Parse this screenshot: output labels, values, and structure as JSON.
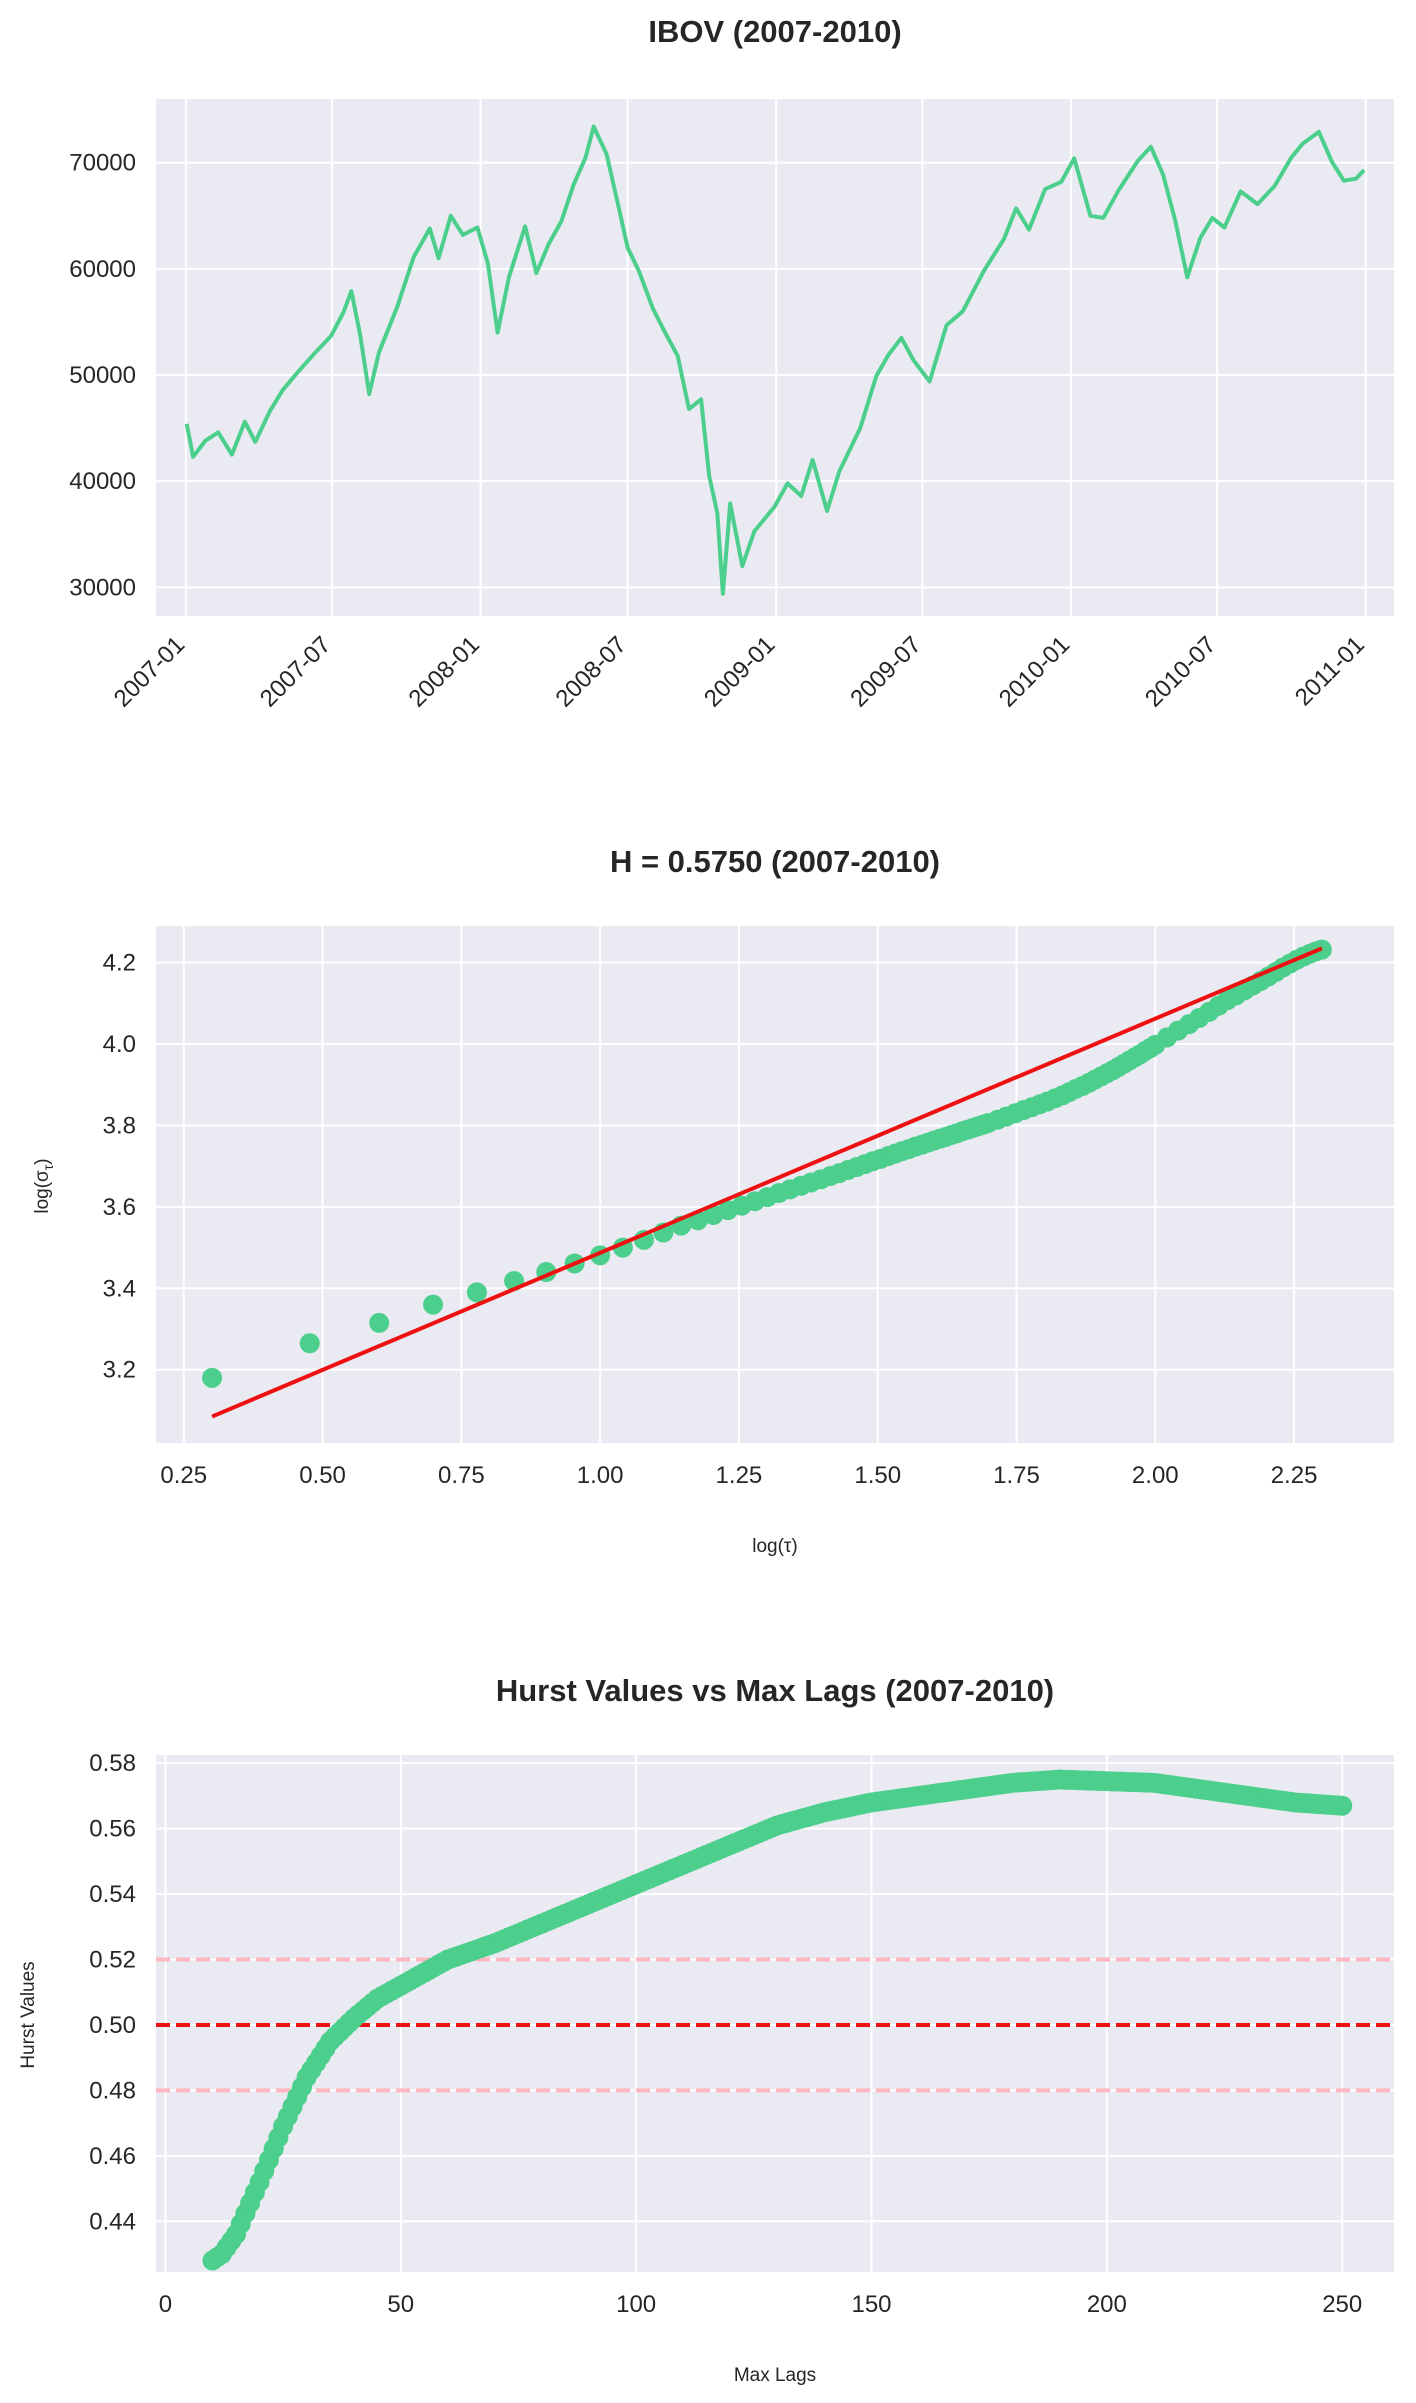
{
  "figure": {
    "colors": {
      "axes_bg": "#eaeaf2",
      "grid": "#ffffff",
      "series": "#4ccf8c",
      "fit": "#ee1111",
      "ref": "#ee1111",
      "band": "#ffb6c1",
      "text": "#262626"
    }
  },
  "chart_data": [
    {
      "type": "line",
      "title": "IBOV (2007-2010)",
      "xlabel": "",
      "ylabel": "",
      "x_ticks": [
        "2007-01",
        "2007-07",
        "2008-01",
        "2008-07",
        "2009-01",
        "2009-07",
        "2010-01",
        "2010-07",
        "2011-01"
      ],
      "y_ticks": [
        "30000",
        "40000",
        "50000",
        "60000",
        "70000"
      ],
      "xlim": [
        "2006-11-25",
        "2011-02-05"
      ],
      "ylim": [
        27300,
        76000
      ],
      "series": [
        {
          "name": "IBOV",
          "points": [
            [
              "2007-01-02",
              45400
            ],
            [
              "2007-01-10",
              42300
            ],
            [
              "2007-01-25",
              43800
            ],
            [
              "2007-02-10",
              44600
            ],
            [
              "2007-02-27",
              42500
            ],
            [
              "2007-03-15",
              45600
            ],
            [
              "2007-03-28",
              43700
            ],
            [
              "2007-04-15",
              46600
            ],
            [
              "2007-05-01",
              48600
            ],
            [
              "2007-05-20",
              50300
            ],
            [
              "2007-06-10",
              52100
            ],
            [
              "2007-06-30",
              53700
            ],
            [
              "2007-07-15",
              55900
            ],
            [
              "2007-07-25",
              57900
            ],
            [
              "2007-08-05",
              53700
            ],
            [
              "2007-08-16",
              48200
            ],
            [
              "2007-08-28",
              52100
            ],
            [
              "2007-09-20",
              56500
            ],
            [
              "2007-10-10",
              61100
            ],
            [
              "2007-10-30",
              63800
            ],
            [
              "2007-11-10",
              61000
            ],
            [
              "2007-11-25",
              65000
            ],
            [
              "2007-12-10",
              63200
            ],
            [
              "2007-12-28",
              63900
            ],
            [
              "2008-01-10",
              60500
            ],
            [
              "2008-01-22",
              54000
            ],
            [
              "2008-02-05",
              59200
            ],
            [
              "2008-02-25",
              64000
            ],
            [
              "2008-03-10",
              59600
            ],
            [
              "2008-03-25",
              62300
            ],
            [
              "2008-04-10",
              64500
            ],
            [
              "2008-04-25",
              67900
            ],
            [
              "2008-05-10",
              70500
            ],
            [
              "2008-05-20",
              73400
            ],
            [
              "2008-06-05",
              70800
            ],
            [
              "2008-06-20",
              65800
            ],
            [
              "2008-07-01",
              62000
            ],
            [
              "2008-07-15",
              59800
            ],
            [
              "2008-08-01",
              56300
            ],
            [
              "2008-08-15",
              54200
            ],
            [
              "2008-09-01",
              51800
            ],
            [
              "2008-09-15",
              46800
            ],
            [
              "2008-09-30",
              47700
            ],
            [
              "2008-10-10",
              40500
            ],
            [
              "2008-10-20",
              37000
            ],
            [
              "2008-10-27",
              29400
            ],
            [
              "2008-11-05",
              37900
            ],
            [
              "2008-11-20",
              32000
            ],
            [
              "2008-12-05",
              35300
            ],
            [
              "2008-12-30",
              37600
            ],
            [
              "2009-01-15",
              39800
            ],
            [
              "2009-02-01",
              38600
            ],
            [
              "2009-02-15",
              42000
            ],
            [
              "2009-03-05",
              37200
            ],
            [
              "2009-03-20",
              40900
            ],
            [
              "2009-04-15",
              45000
            ],
            [
              "2009-05-05",
              49900
            ],
            [
              "2009-05-20",
              51900
            ],
            [
              "2009-06-05",
              53500
            ],
            [
              "2009-06-20",
              51400
            ],
            [
              "2009-07-10",
              49400
            ],
            [
              "2009-07-31",
              54700
            ],
            [
              "2009-08-20",
              56000
            ],
            [
              "2009-09-15",
              59800
            ],
            [
              "2009-10-10",
              62800
            ],
            [
              "2009-10-25",
              65700
            ],
            [
              "2009-11-10",
              63700
            ],
            [
              "2009-11-30",
              67500
            ],
            [
              "2009-12-20",
              68200
            ],
            [
              "2010-01-05",
              70400
            ],
            [
              "2010-01-25",
              65000
            ],
            [
              "2010-02-10",
              64800
            ],
            [
              "2010-03-01",
              67400
            ],
            [
              "2010-03-25",
              70200
            ],
            [
              "2010-04-10",
              71500
            ],
            [
              "2010-04-25",
              68900
            ],
            [
              "2010-05-10",
              64600
            ],
            [
              "2010-05-25",
              59200
            ],
            [
              "2010-06-10",
              62900
            ],
            [
              "2010-06-25",
              64800
            ],
            [
              "2010-07-10",
              63900
            ],
            [
              "2010-07-30",
              67300
            ],
            [
              "2010-08-20",
              66100
            ],
            [
              "2010-09-10",
              67800
            ],
            [
              "2010-10-01",
              70500
            ],
            [
              "2010-10-15",
              71800
            ],
            [
              "2010-11-04",
              72900
            ],
            [
              "2010-11-20",
              70100
            ],
            [
              "2010-12-05",
              68300
            ],
            [
              "2010-12-20",
              68500
            ],
            [
              "2010-12-30",
              69300
            ]
          ]
        }
      ]
    },
    {
      "type": "scatter",
      "title": "H = 0.5750 (2007-2010)",
      "xlabel": "log(τ)",
      "ylabel": "log(σ",
      "ylabel_sub": "τ",
      "ylabel_close": ")",
      "x_ticks": [
        "0.25",
        "0.50",
        "0.75",
        "1.00",
        "1.25",
        "1.50",
        "1.75",
        "2.00",
        "2.25"
      ],
      "y_ticks": [
        "3.2",
        "3.4",
        "3.6",
        "3.8",
        "4.0",
        "4.2"
      ],
      "xlim": [
        0.2,
        2.43
      ],
      "ylim": [
        3.02,
        4.29
      ],
      "series": [
        {
          "name": "log sigma vs log tau",
          "points": [
            [
              0.301,
              3.18
            ],
            [
              0.477,
              3.265
            ],
            [
              0.602,
              3.315
            ],
            [
              0.699,
              3.36
            ],
            [
              0.778,
              3.39
            ],
            [
              0.845,
              3.418
            ],
            [
              0.903,
              3.44
            ],
            [
              0.954,
              3.461
            ],
            [
              1.0,
              3.481
            ],
            [
              1.041,
              3.5
            ],
            [
              1.079,
              3.519
            ],
            [
              1.114,
              3.537
            ],
            [
              1.146,
              3.554
            ],
            [
              1.176,
              3.567
            ],
            [
              1.204,
              3.58
            ],
            [
              1.23,
              3.592
            ],
            [
              1.255,
              3.603
            ],
            [
              1.279,
              3.614
            ],
            [
              1.301,
              3.624
            ],
            [
              1.322,
              3.634
            ],
            [
              1.342,
              3.643
            ],
            [
              1.362,
              3.652
            ],
            [
              1.38,
              3.66
            ],
            [
              1.398,
              3.668
            ],
            [
              1.415,
              3.676
            ],
            [
              1.431,
              3.683
            ],
            [
              1.447,
              3.691
            ],
            [
              1.462,
              3.698
            ],
            [
              1.477,
              3.705
            ],
            [
              1.491,
              3.712
            ],
            [
              1.505,
              3.718
            ],
            [
              1.519,
              3.725
            ],
            [
              1.532,
              3.731
            ],
            [
              1.544,
              3.737
            ],
            [
              1.556,
              3.742
            ],
            [
              1.568,
              3.748
            ],
            [
              1.58,
              3.753
            ],
            [
              1.591,
              3.758
            ],
            [
              1.602,
              3.763
            ],
            [
              1.613,
              3.768
            ],
            [
              1.623,
              3.772
            ],
            [
              1.633,
              3.777
            ],
            [
              1.643,
              3.781
            ],
            [
              1.653,
              3.786
            ],
            [
              1.663,
              3.79
            ],
            [
              1.672,
              3.794
            ],
            [
              1.681,
              3.798
            ],
            [
              1.69,
              3.802
            ],
            [
              1.699,
              3.806
            ],
            [
              1.716,
              3.814
            ],
            [
              1.732,
              3.822
            ],
            [
              1.748,
              3.83
            ],
            [
              1.763,
              3.838
            ],
            [
              1.778,
              3.845
            ],
            [
              1.792,
              3.852
            ],
            [
              1.806,
              3.859
            ],
            [
              1.82,
              3.867
            ],
            [
              1.833,
              3.874
            ],
            [
              1.845,
              3.882
            ],
            [
              1.857,
              3.89
            ],
            [
              1.869,
              3.897
            ],
            [
              1.881,
              3.905
            ],
            [
              1.892,
              3.913
            ],
            [
              1.903,
              3.921
            ],
            [
              1.914,
              3.929
            ],
            [
              1.924,
              3.936
            ],
            [
              1.934,
              3.944
            ],
            [
              1.944,
              3.952
            ],
            [
              1.954,
              3.96
            ],
            [
              1.964,
              3.968
            ],
            [
              1.973,
              3.975
            ],
            [
              1.982,
              3.983
            ],
            [
              1.991,
              3.99
            ],
            [
              2.0,
              3.998
            ],
            [
              2.021,
              4.016
            ],
            [
              2.041,
              4.033
            ],
            [
              2.061,
              4.049
            ],
            [
              2.079,
              4.064
            ],
            [
              2.097,
              4.079
            ],
            [
              2.114,
              4.094
            ],
            [
              2.13,
              4.108
            ],
            [
              2.146,
              4.12
            ],
            [
              2.161,
              4.132
            ],
            [
              2.176,
              4.144
            ],
            [
              2.19,
              4.155
            ],
            [
              2.204,
              4.166
            ],
            [
              2.217,
              4.177
            ],
            [
              2.23,
              4.188
            ],
            [
              2.243,
              4.198
            ],
            [
              2.255,
              4.207
            ],
            [
              2.267,
              4.215
            ],
            [
              2.279,
              4.222
            ],
            [
              2.29,
              4.228
            ],
            [
              2.3,
              4.232
            ]
          ]
        },
        {
          "name": "fit",
          "kind": "line",
          "points": [
            [
              0.301,
              3.085
            ],
            [
              2.3,
              4.235
            ]
          ]
        }
      ]
    },
    {
      "type": "scatter",
      "title": "Hurst Values vs Max Lags (2007-2010)",
      "xlabel": "Max Lags",
      "ylabel": "Hurst Values",
      "x_ticks": [
        "0",
        "50",
        "100",
        "150",
        "200",
        "250"
      ],
      "y_ticks": [
        "0.44",
        "0.46",
        "0.48",
        "0.50",
        "0.52",
        "0.54",
        "0.56",
        "0.58"
      ],
      "xlim": [
        -2,
        261
      ],
      "ylim": [
        0.4245,
        0.5825
      ],
      "reference_lines": [
        {
          "y": 0.5,
          "style": "dashed",
          "color": "red"
        },
        {
          "y": 0.52,
          "style": "dashed",
          "color": "pink"
        },
        {
          "y": 0.48,
          "style": "dashed",
          "color": "pink"
        }
      ],
      "curve_knots": [
        [
          10,
          0.428
        ],
        [
          12,
          0.43
        ],
        [
          15,
          0.436
        ],
        [
          20,
          0.452
        ],
        [
          25,
          0.469
        ],
        [
          30,
          0.484
        ],
        [
          35,
          0.495
        ],
        [
          40,
          0.502
        ],
        [
          45,
          0.508
        ],
        [
          50,
          0.512
        ],
        [
          55,
          0.516
        ],
        [
          60,
          0.52
        ],
        [
          70,
          0.525
        ],
        [
          80,
          0.531
        ],
        [
          90,
          0.537
        ],
        [
          100,
          0.543
        ],
        [
          110,
          0.549
        ],
        [
          120,
          0.555
        ],
        [
          130,
          0.561
        ],
        [
          140,
          0.565
        ],
        [
          150,
          0.568
        ],
        [
          160,
          0.57
        ],
        [
          170,
          0.572
        ],
        [
          180,
          0.574
        ],
        [
          190,
          0.575
        ],
        [
          200,
          0.5745
        ],
        [
          210,
          0.574
        ],
        [
          220,
          0.572
        ],
        [
          230,
          0.57
        ],
        [
          240,
          0.568
        ],
        [
          250,
          0.567
        ]
      ]
    }
  ]
}
